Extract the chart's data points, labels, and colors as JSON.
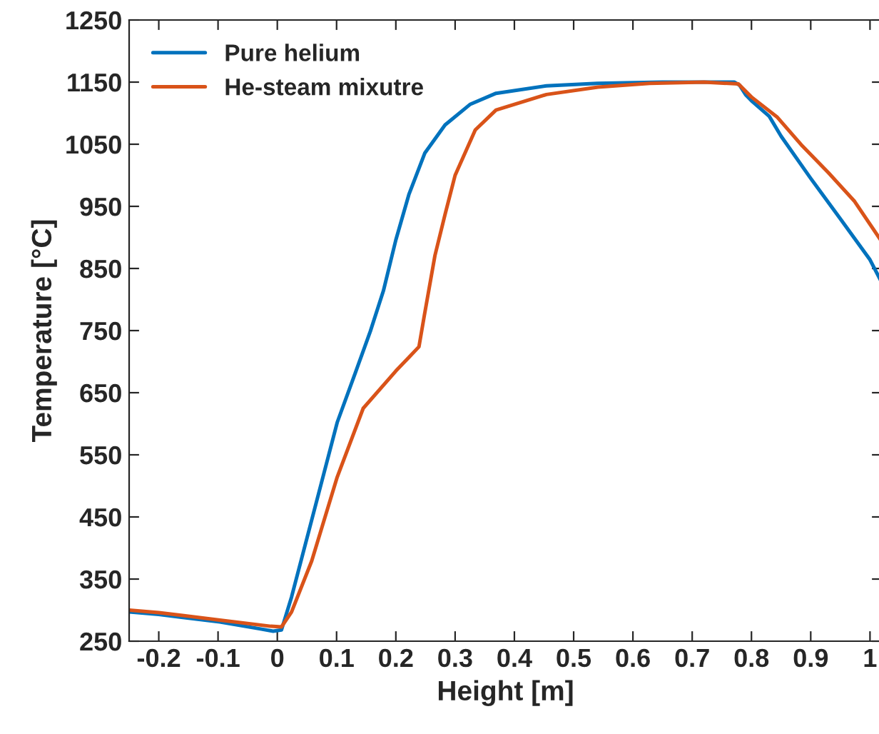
{
  "chart_data": {
    "type": "line",
    "xlabel": "Height [m]",
    "ylabel": "Temperature [°C]",
    "xlim": [
      -0.25,
      1.02
    ],
    "ylim": [
      250,
      1250
    ],
    "xticks": [
      -0.2,
      -0.1,
      0,
      0.1,
      0.2,
      0.3,
      0.4,
      0.5,
      0.6,
      0.7,
      0.8,
      0.9,
      1
    ],
    "yticks": [
      250,
      350,
      450,
      550,
      650,
      750,
      850,
      950,
      1050,
      1150,
      1250
    ],
    "grid": false,
    "legend": "top left",
    "line_style": "solid",
    "marker": "none",
    "series": [
      {
        "name": "Pure helium",
        "color": "#0072bd",
        "x": [
          -0.25,
          -0.2,
          -0.097,
          -0.03,
          -0.007,
          0.007,
          0.024,
          0.058,
          0.101,
          0.132,
          0.157,
          0.179,
          0.2,
          0.222,
          0.249,
          0.283,
          0.325,
          0.369,
          0.454,
          0.54,
          0.65,
          0.771,
          0.78,
          0.79,
          0.8,
          0.83,
          0.85,
          0.9,
          0.95,
          1.0,
          1.02
        ],
        "values": [
          297,
          293,
          281,
          270,
          266,
          268,
          321,
          445,
          602,
          683,
          749,
          814,
          896,
          969,
          1036,
          1081,
          1114,
          1132,
          1144,
          1148,
          1150,
          1150,
          1145,
          1130,
          1120,
          1095,
          1063,
          995,
          930,
          864,
          827
        ]
      },
      {
        "name": "He-steam mixutre",
        "color": "#d95319",
        "x": [
          -0.25,
          -0.2,
          -0.097,
          -0.011,
          0.007,
          0.024,
          0.058,
          0.101,
          0.145,
          0.2,
          0.222,
          0.239,
          0.248,
          0.266,
          0.283,
          0.3,
          0.334,
          0.369,
          0.454,
          0.541,
          0.628,
          0.72,
          0.778,
          0.8,
          0.843,
          0.886,
          0.93,
          0.974,
          1.02
        ],
        "values": [
          300,
          296,
          284,
          274,
          273,
          297,
          379,
          514,
          625,
          685,
          707,
          724,
          774,
          871,
          937,
          1000,
          1073,
          1105,
          1130,
          1142,
          1148,
          1150,
          1147,
          1126,
          1094,
          1047,
          1004,
          958,
          893
        ]
      }
    ]
  }
}
